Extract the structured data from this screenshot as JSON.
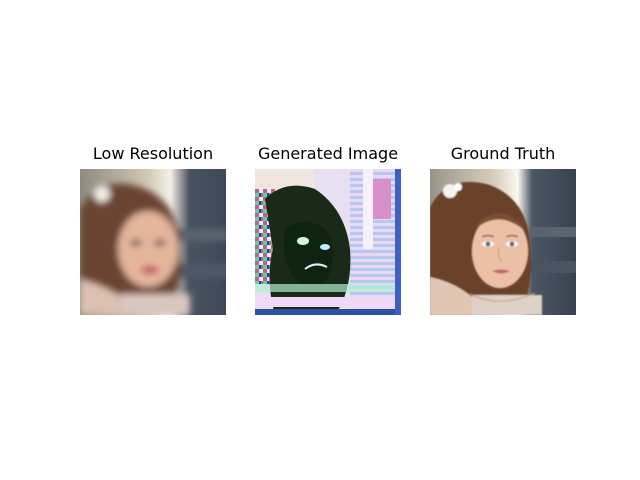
{
  "panels": [
    {
      "title": "Low Resolution",
      "image": "face-photo-blurred"
    },
    {
      "title": "Generated Image",
      "image": "face-generated-artifacts"
    },
    {
      "title": "Ground Truth",
      "image": "face-photo-sharp"
    }
  ],
  "colors": {
    "background": "#ffffff",
    "text": "#000000"
  }
}
